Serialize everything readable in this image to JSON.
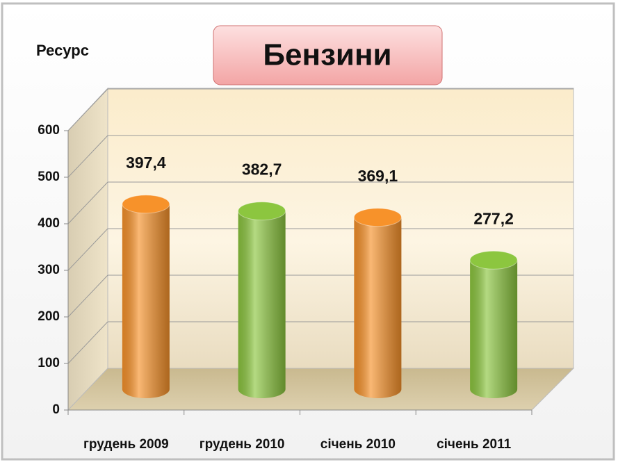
{
  "chart_data": {
    "type": "bar3d",
    "title": "Бензини",
    "y_axis_label": "Ресурс",
    "categories": [
      "грудень 2009",
      "грудень 2010",
      "січень 2010",
      "січень 2011"
    ],
    "values": [
      397.4,
      382.7,
      369.1,
      277.2
    ],
    "value_labels": [
      "397,4",
      "382,7",
      "369,1",
      "277,2"
    ],
    "colors": [
      "#f7922a",
      "#8cc63f",
      "#f7922a",
      "#8cc63f"
    ],
    "ylim": [
      0,
      600
    ],
    "yticks": [
      0,
      100,
      200,
      300,
      400,
      500,
      600
    ],
    "grid": true
  }
}
